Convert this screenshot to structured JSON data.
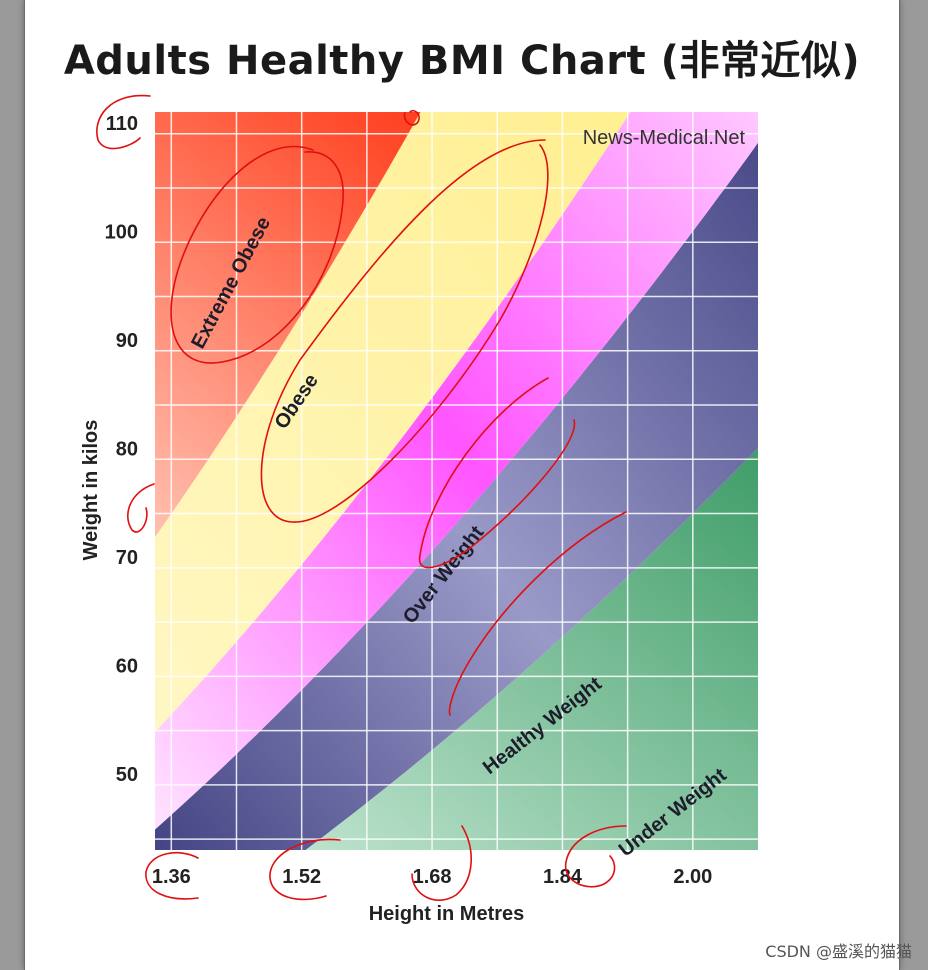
{
  "chart_data": {
    "type": "area",
    "title": "Adults Healthy BMI Chart (非常近似)",
    "xlabel": "Height in Metres",
    "ylabel": "Weight in kilos",
    "x_ticks": [
      1.36,
      1.52,
      1.68,
      1.84,
      2.0
    ],
    "y_ticks": [
      50,
      60,
      70,
      80,
      90,
      100,
      110
    ],
    "xlim": [
      1.34,
      2.08
    ],
    "ylim": [
      43,
      111
    ],
    "grid": true,
    "watermark": "News-Medical.Net",
    "zones": [
      {
        "name": "Under Weight",
        "bmi_range": [
          0,
          18.5
        ],
        "color": "#4fac7a"
      },
      {
        "name": "Healthy Weight",
        "bmi_range": [
          18.5,
          25
        ],
        "color": "#4e4e8c"
      },
      {
        "name": "Over Weight",
        "bmi_range": [
          25,
          30
        ],
        "color": "#ff55ff"
      },
      {
        "name": "Obese",
        "bmi_range": [
          30,
          40
        ],
        "color": "#fff19a"
      },
      {
        "name": "Extreme Obese",
        "bmi_range": [
          40,
          100
        ],
        "color": "#ff1a00"
      }
    ]
  },
  "footer": {
    "credit": "CSDN @盛溪的猫猫"
  }
}
